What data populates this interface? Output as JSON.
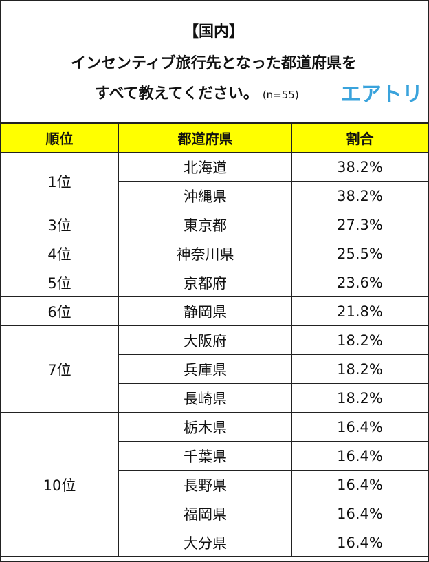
{
  "title": {
    "line1": "【国内】",
    "line2": "インセンティブ旅行先となった都道府県を",
    "line3": "すべて教えてください。",
    "sample": "(n=55)",
    "logo": "エアトリ"
  },
  "colors": {
    "header_bg": "#ffff00",
    "logo": "#3aa3dc",
    "border": "#222222"
  },
  "chart_data": {
    "type": "table",
    "columns": [
      "順位",
      "都道府県",
      "割合"
    ],
    "groups": [
      {
        "rank": "1位",
        "rows": [
          {
            "pref": "北海道",
            "pct": "38.2%"
          },
          {
            "pref": "沖縄県",
            "pct": "38.2%"
          }
        ]
      },
      {
        "rank": "3位",
        "rows": [
          {
            "pref": "東京都",
            "pct": "27.3%"
          }
        ]
      },
      {
        "rank": "4位",
        "rows": [
          {
            "pref": "神奈川県",
            "pct": "25.5%"
          }
        ]
      },
      {
        "rank": "5位",
        "rows": [
          {
            "pref": "京都府",
            "pct": "23.6%"
          }
        ]
      },
      {
        "rank": "6位",
        "rows": [
          {
            "pref": "静岡県",
            "pct": "21.8%"
          }
        ]
      },
      {
        "rank": "7位",
        "rows": [
          {
            "pref": "大阪府",
            "pct": "18.2%"
          },
          {
            "pref": "兵庫県",
            "pct": "18.2%"
          },
          {
            "pref": "長崎県",
            "pct": "18.2%"
          }
        ]
      },
      {
        "rank": "10位",
        "rows": [
          {
            "pref": "栃木県",
            "pct": "16.4%"
          },
          {
            "pref": "千葉県",
            "pct": "16.4%"
          },
          {
            "pref": "長野県",
            "pct": "16.4%"
          },
          {
            "pref": "福岡県",
            "pct": "16.4%"
          },
          {
            "pref": "大分県",
            "pct": "16.4%"
          }
        ]
      }
    ]
  }
}
